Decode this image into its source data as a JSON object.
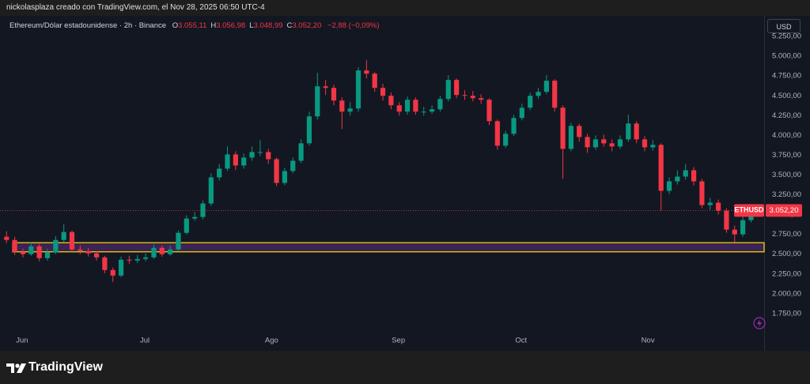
{
  "header": {
    "credit": "nickolasplaza creado con TradingView.com, el Nov 28, 2025 06:50 UTC-4"
  },
  "footer": {
    "brand": "TradingView"
  },
  "chart_data": {
    "type": "candlestick",
    "title": "Ethereum/Dólar estadounidense · 2h · Binance",
    "ohlc": [
      {
        "key": "O",
        "value": "3.055,11"
      },
      {
        "key": "H",
        "value": "3.056,98"
      },
      {
        "key": "L",
        "value": "3.048,99"
      },
      {
        "key": "C",
        "value": "3.052,20"
      }
    ],
    "change": "−2,88 (−0,09%)",
    "currency": "USD",
    "symbol": "ETHUSD",
    "last_price": {
      "value": 3052.2,
      "label": "3.052,20"
    },
    "up_color": "#089981",
    "down_color": "#f23645",
    "zone": {
      "low": 2530,
      "high": 2645,
      "color": "#f0d000"
    },
    "open": [
      2720,
      2680,
      2530,
      2500,
      2600,
      2450,
      2520,
      2680,
      2780,
      2560,
      2540,
      2510,
      2460,
      2300,
      2230,
      2430,
      2420,
      2440,
      2460,
      2580,
      2500,
      2560,
      2770,
      2950,
      2970,
      3140,
      3470,
      3580,
      3760,
      3620,
      3720,
      3790,
      3790,
      3700,
      3400,
      3550,
      3680,
      3900,
      4240,
      4620,
      4600,
      4440,
      4300,
      4340,
      4820,
      4780,
      4600,
      4500,
      4380,
      4300,
      4450,
      4300,
      4300,
      4330,
      4460,
      4700,
      4510,
      4500,
      4470,
      4450,
      4180,
      3870,
      4020,
      4220,
      4350,
      4500,
      4550,
      4690,
      4350,
      3830,
      4120,
      3980,
      3850,
      3950,
      3900,
      3860,
      3950,
      4150,
      3950,
      3850,
      3880,
      3300,
      3420,
      3480,
      3560,
      3420,
      3120,
      3150,
      3050,
      2810,
      2750,
      2930
    ],
    "high": [
      2790,
      2720,
      2570,
      2650,
      2630,
      2570,
      2730,
      2880,
      2800,
      2610,
      2580,
      2540,
      2480,
      2330,
      2470,
      2480,
      2490,
      2510,
      2620,
      2610,
      2610,
      2800,
      2990,
      3030,
      3180,
      3520,
      3640,
      3860,
      3800,
      3770,
      3860,
      3940,
      3830,
      3720,
      3590,
      3720,
      3950,
      4300,
      4790,
      4700,
      4640,
      4480,
      4420,
      4860,
      4950,
      4800,
      4650,
      4540,
      4420,
      4490,
      4480,
      4360,
      4380,
      4500,
      4760,
      4720,
      4570,
      4560,
      4520,
      4470,
      4200,
      4060,
      4260,
      4400,
      4540,
      4600,
      4760,
      4710,
      4380,
      4160,
      4150,
      4020,
      4000,
      4010,
      3950,
      4000,
      4260,
      4180,
      3990,
      3940,
      3900,
      3470,
      3560,
      3640,
      3600,
      3450,
      3210,
      3190,
      3080,
      2860,
      2980,
      3070
    ],
    "low": [
      2640,
      2490,
      2460,
      2480,
      2410,
      2420,
      2500,
      2650,
      2530,
      2500,
      2470,
      2420,
      2260,
      2150,
      2210,
      2380,
      2390,
      2410,
      2440,
      2470,
      2480,
      2540,
      2750,
      2920,
      2940,
      3110,
      3430,
      3550,
      3560,
      3580,
      3680,
      3740,
      3640,
      3360,
      3370,
      3520,
      3650,
      3870,
      4200,
      4510,
      4380,
      4080,
      4250,
      4300,
      4720,
      4550,
      4440,
      4330,
      4250,
      4260,
      4260,
      4250,
      4270,
      4300,
      4430,
      4470,
      4450,
      4430,
      4400,
      4130,
      3820,
      3840,
      3990,
      4190,
      4320,
      4460,
      4520,
      4300,
      3450,
      3800,
      3920,
      3780,
      3820,
      3860,
      3800,
      3830,
      3920,
      3900,
      3800,
      3810,
      3050,
      3260,
      3380,
      3440,
      3370,
      3080,
      3060,
      3000,
      2770,
      2650,
      2720,
      2900
    ],
    "close": [
      2680,
      2530,
      2500,
      2600,
      2450,
      2520,
      2680,
      2780,
      2560,
      2540,
      2510,
      2460,
      2300,
      2230,
      2430,
      2420,
      2440,
      2460,
      2580,
      2500,
      2560,
      2770,
      2950,
      2970,
      3140,
      3470,
      3580,
      3760,
      3620,
      3720,
      3790,
      3790,
      3700,
      3400,
      3550,
      3680,
      3900,
      4240,
      4620,
      4600,
      4440,
      4300,
      4340,
      4820,
      4780,
      4600,
      4500,
      4380,
      4300,
      4450,
      4300,
      4300,
      4330,
      4460,
      4700,
      4510,
      4500,
      4470,
      4450,
      4180,
      3870,
      4020,
      4220,
      4350,
      4500,
      4550,
      4690,
      4350,
      3830,
      4120,
      3980,
      3850,
      3950,
      3900,
      3860,
      3950,
      4150,
      3950,
      3850,
      3880,
      3300,
      3420,
      3480,
      3560,
      3420,
      3120,
      3150,
      3050,
      2810,
      2750,
      2930,
      3020
    ],
    "xlim": [
      -0.8,
      92.6
    ],
    "xticks": [
      {
        "value": 1.9,
        "label": "Jun"
      },
      {
        "value": 16.9,
        "label": "Jul"
      },
      {
        "value": 32.4,
        "label": "Ago"
      },
      {
        "value": 47.9,
        "label": "Sep"
      },
      {
        "value": 62.9,
        "label": "Oct"
      },
      {
        "value": 78.4,
        "label": "Nov"
      }
    ],
    "ylim": [
      1300,
      5490
    ],
    "yticks": [
      {
        "value": 1750,
        "label": "1.750,00"
      },
      {
        "value": 2000,
        "label": "2.000,00"
      },
      {
        "value": 2250,
        "label": "2.250,00"
      },
      {
        "value": 2500,
        "label": "2.500,00"
      },
      {
        "value": 2750,
        "label": "2.750,00"
      },
      {
        "value": 3000,
        "label": "3.000,00"
      },
      {
        "value": 3250,
        "label": "3.250,00"
      },
      {
        "value": 3500,
        "label": "3.500,00"
      },
      {
        "value": 3750,
        "label": "3.750,00"
      },
      {
        "value": 4000,
        "label": "4.000,00"
      },
      {
        "value": 4250,
        "label": "4.250,00"
      },
      {
        "value": 4500,
        "label": "4.500,00"
      },
      {
        "value": 4750,
        "label": "4.750,00"
      },
      {
        "value": 5000,
        "label": "5.000,00"
      },
      {
        "value": 5250,
        "label": "5.250,00"
      }
    ],
    "grid": false
  }
}
